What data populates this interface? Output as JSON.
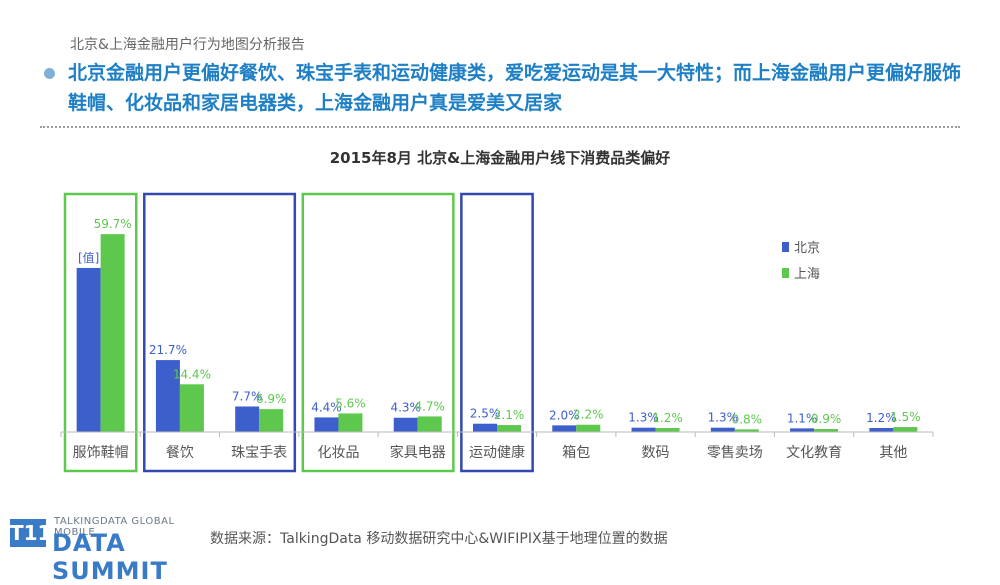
{
  "page": {
    "breadcrumb": "北京&上海金融用户行为地图分析报告",
    "headline": "北京金融用户更偏好餐饮、珠宝手表和运动健康类，爱吃爱运动是其一大特性；而上海金融用户更偏好服饰鞋帽、化妆品和家居电器类，上海金融用户真是爱美又居家",
    "footer_source": "数据来源：TalkingData 移动数据研究中心&WIFIPIX基于地理位置的数据",
    "logo_top": "TALKINGDATA GLOBAL MOBILE",
    "logo_bottom": "DATA SUMMIT",
    "logo_mark": "T11",
    "bullet_color": "#7fb0d8",
    "headline_color": "#1e7fc5"
  },
  "chart_data": {
    "type": "bar",
    "title": "2015年8月  北京&上海金融用户线下消费品类偏好",
    "categories": [
      "服饰鞋帽",
      "餐饮",
      "珠宝手表",
      "化妆品",
      "家具电器",
      "运动健康",
      "箱包",
      "数码",
      "零售卖场",
      "文化教育",
      "其他"
    ],
    "series": [
      {
        "name": "北京",
        "color": "#3d5fcc",
        "values": [
          49.5,
          21.7,
          7.7,
          4.4,
          4.3,
          2.5,
          2.0,
          1.3,
          1.3,
          1.1,
          1.2
        ],
        "labels": [
          "[值]",
          "21.7%",
          "7.7%",
          "4.4%",
          "4.3%",
          "2.5%",
          "2.0%",
          "1.3%",
          "1.3%",
          "1.1%",
          "1.2%"
        ]
      },
      {
        "name": "上海",
        "color": "#5ec84e",
        "values": [
          59.7,
          14.4,
          6.9,
          5.6,
          4.7,
          2.1,
          2.2,
          1.2,
          0.8,
          0.9,
          1.5
        ],
        "labels": [
          "59.7%",
          "14.4%",
          "6.9%",
          "5.6%",
          "4.7%",
          "2.1%",
          "2.2%",
          "1.2%",
          "0.8%",
          "0.9%",
          "1.5%"
        ]
      }
    ],
    "ylim": [
      0,
      70
    ],
    "grid": false,
    "legend_position": "right",
    "highlight_groups": [
      {
        "categories": [
          "服饰鞋帽"
        ],
        "color": "#5ec84e"
      },
      {
        "categories": [
          "餐饮",
          "珠宝手表"
        ],
        "color": "#3348b0"
      },
      {
        "categories": [
          "化妆品",
          "家具电器"
        ],
        "color": "#5ec84e"
      },
      {
        "categories": [
          "运动健康"
        ],
        "color": "#3348b0"
      }
    ]
  }
}
